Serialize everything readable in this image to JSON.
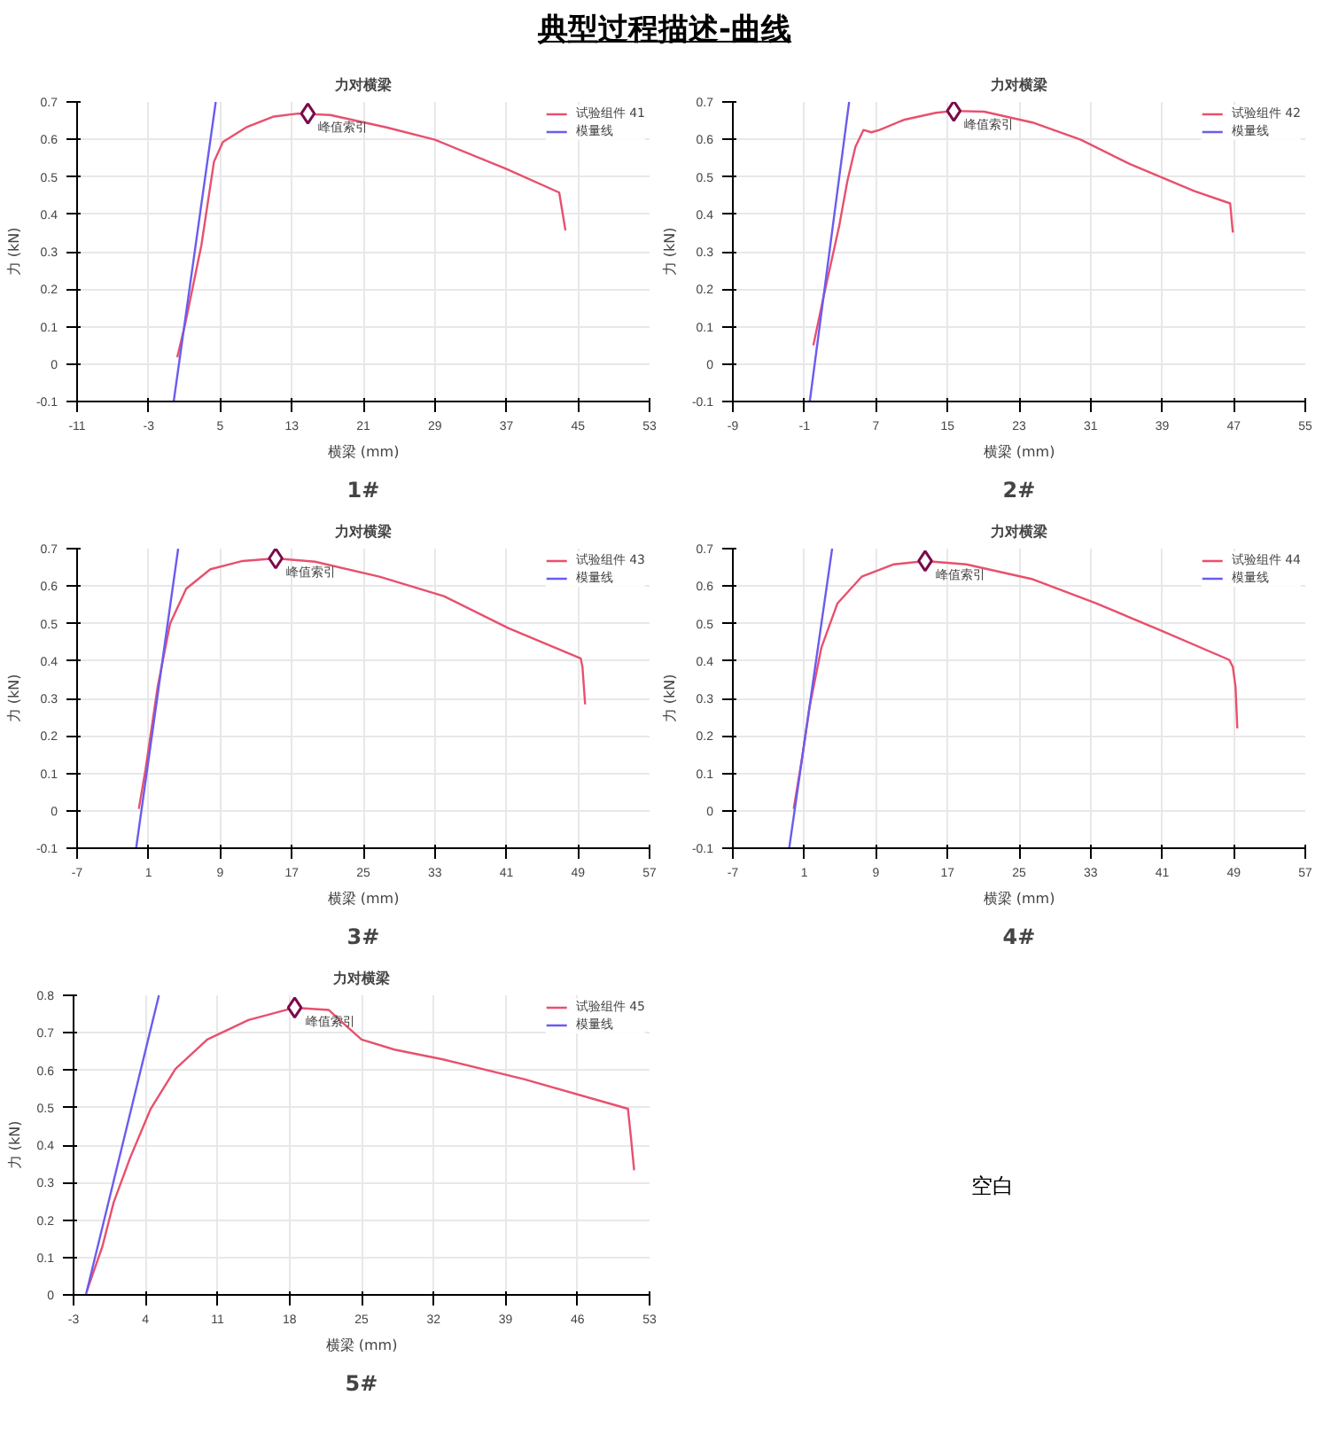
{
  "chart_data": [
    {
      "type": "line",
      "title": "力对横梁",
      "xlabel": "横梁 (mm)",
      "ylabel": "力 (kN)",
      "xlim": [
        -11,
        53
      ],
      "ylim": [
        -0.1,
        0.7
      ],
      "xticks": [
        -11,
        -3,
        5,
        13,
        21,
        29,
        37,
        45,
        53
      ],
      "yticks": [
        -0.1,
        0,
        0.1,
        0.2,
        0.3,
        0.4,
        0.5,
        0.6,
        0.7
      ],
      "grid": true,
      "legend": "top right",
      "marker": "none",
      "line_style": "solid",
      "series": [
        {
          "name": "试验组件 41",
          "color": "#e8506e",
          "x": [
            0.2,
            1.1,
            2.9,
            4.3,
            5.3,
            7.9,
            11.0,
            13.7,
            17.3,
            23.6,
            29.0,
            37.0,
            42.9,
            43.5,
            43.6
          ],
          "values": [
            0.018,
            0.109,
            0.318,
            0.54,
            0.593,
            0.632,
            0.661,
            0.669,
            0.665,
            0.632,
            0.599,
            0.521,
            0.458,
            0.371,
            0.357
          ]
        },
        {
          "name": "模量线",
          "color": "#6a5cf0",
          "x": [
            -0.2,
            4.5
          ],
          "values": [
            -0.1,
            0.7
          ]
        }
      ],
      "annotations": [
        {
          "text": "峰值索引",
          "x": 14.8,
          "y": 0.669
        },
        "1#"
      ]
    },
    {
      "type": "line",
      "title": "力对横梁",
      "xlabel": "横梁 (mm)",
      "ylabel": "力 (kN)",
      "xlim": [
        -9,
        55
      ],
      "ylim": [
        -0.1,
        0.7
      ],
      "xticks": [
        -9,
        -1,
        7,
        15,
        23,
        31,
        39,
        47,
        55
      ],
      "yticks": [
        -0.1,
        0,
        0.1,
        0.2,
        0.3,
        0.4,
        0.5,
        0.6,
        0.7
      ],
      "grid": true,
      "legend": "top right",
      "marker": "none",
      "line_style": "solid",
      "series": [
        {
          "name": "试验组件 42",
          "color": "#e8506e",
          "x": [
            0.0,
            1.1,
            2.9,
            3.8,
            4.7,
            5.6,
            6.5,
            7.4,
            10.1,
            13.7,
            15.7,
            19.1,
            24.5,
            29.9,
            35.4,
            42.6,
            46.6,
            46.9
          ],
          "values": [
            0.05,
            0.175,
            0.37,
            0.488,
            0.58,
            0.625,
            0.619,
            0.625,
            0.652,
            0.671,
            0.676,
            0.674,
            0.645,
            0.599,
            0.534,
            0.462,
            0.429,
            0.351
          ]
        },
        {
          "name": "模量线",
          "color": "#6a5cf0",
          "x": [
            -0.4,
            4.0
          ],
          "values": [
            -0.1,
            0.7
          ]
        }
      ],
      "annotations": [
        {
          "text": "峰值索引",
          "x": 15.7,
          "y": 0.676
        },
        "2#"
      ]
    },
    {
      "type": "line",
      "title": "力对横梁",
      "xlabel": "横梁 (mm)",
      "ylabel": "力 (kN)",
      "xlim": [
        -7,
        57
      ],
      "ylim": [
        -0.1,
        0.7
      ],
      "xticks": [
        -7,
        1,
        9,
        17,
        25,
        33,
        41,
        49,
        57
      ],
      "yticks": [
        -0.1,
        0,
        0.1,
        0.2,
        0.3,
        0.4,
        0.5,
        0.6,
        0.7
      ],
      "grid": true,
      "legend": "top right",
      "marker": "none",
      "line_style": "solid",
      "series": [
        {
          "name": "试验组件 43",
          "color": "#e8506e",
          "x": [
            -0.1,
            0.65,
            2.0,
            3.4,
            5.2,
            7.9,
            11.5,
            15.2,
            19.6,
            26.8,
            34.0,
            41.2,
            49.3,
            49.5,
            49.8
          ],
          "values": [
            0.005,
            0.11,
            0.33,
            0.5,
            0.593,
            0.645,
            0.667,
            0.674,
            0.665,
            0.625,
            0.573,
            0.488,
            0.407,
            0.384,
            0.284
          ]
        },
        {
          "name": "模量线",
          "color": "#6a5cf0",
          "x": [
            -0.4,
            4.3
          ],
          "values": [
            -0.1,
            0.7
          ]
        }
      ],
      "annotations": [
        {
          "text": "峰值索引",
          "x": 15.2,
          "y": 0.674
        },
        "3#"
      ]
    },
    {
      "type": "line",
      "title": "力对横梁",
      "xlabel": "横梁 (mm)",
      "ylabel": "力 (kN)",
      "xlim": [
        -7,
        57
      ],
      "ylim": [
        -0.1,
        0.7
      ],
      "xticks": [
        -7,
        1,
        9,
        17,
        25,
        33,
        41,
        49,
        57
      ],
      "yticks": [
        -0.1,
        0,
        0.1,
        0.2,
        0.3,
        0.4,
        0.5,
        0.6,
        0.7
      ],
      "grid": true,
      "legend": "top right",
      "marker": "none",
      "line_style": "solid",
      "series": [
        {
          "name": "试验组件 44",
          "color": "#e8506e",
          "x": [
            -0.2,
            0.7,
            1.6,
            2.9,
            4.7,
            7.4,
            11.0,
            14.5,
            19.1,
            26.4,
            33.6,
            40.8,
            48.5,
            48.9,
            49.2,
            49.4
          ],
          "values": [
            0.005,
            0.135,
            0.279,
            0.436,
            0.554,
            0.625,
            0.658,
            0.667,
            0.658,
            0.619,
            0.554,
            0.482,
            0.403,
            0.384,
            0.331,
            0.22
          ]
        },
        {
          "name": "模量线",
          "color": "#6a5cf0",
          "x": [
            -0.7,
            4.1
          ],
          "values": [
            -0.1,
            0.7
          ]
        }
      ],
      "annotations": [
        {
          "text": "峰值索引",
          "x": 14.5,
          "y": 0.667
        },
        "4#"
      ]
    },
    {
      "type": "line",
      "title": "力对横梁",
      "xlabel": "横梁 (mm)",
      "ylabel": "力 (kN)",
      "xlim": [
        -3,
        53
      ],
      "ylim": [
        0,
        0.8
      ],
      "xticks": [
        -3,
        4,
        11,
        18,
        25,
        32,
        39,
        46,
        53
      ],
      "yticks": [
        0,
        0.1,
        0.2,
        0.3,
        0.4,
        0.5,
        0.6,
        0.7,
        0.8
      ],
      "grid": true,
      "legend": "top right",
      "marker": "none",
      "line_style": "solid",
      "series": [
        {
          "name": "试验组件 45",
          "color": "#e8506e",
          "x": [
            -1.7,
            -0.2,
            0.9,
            2.5,
            4.5,
            6.9,
            10.0,
            14.0,
            18.5,
            21.8,
            23.4,
            25.0,
            28.2,
            32.9,
            40.8,
            50.9,
            51.2,
            51.5
          ],
          "values": [
            0.011,
            0.129,
            0.247,
            0.366,
            0.497,
            0.603,
            0.682,
            0.734,
            0.767,
            0.761,
            0.721,
            0.682,
            0.655,
            0.629,
            0.576,
            0.497,
            0.418,
            0.333
          ]
        },
        {
          "name": "模量线",
          "color": "#6a5cf0",
          "x": [
            -1.8,
            5.3
          ],
          "values": [
            0,
            0.8
          ]
        }
      ],
      "annotations": [
        {
          "text": "峰值索引",
          "x": 18.5,
          "y": 0.767
        },
        "5#"
      ]
    },
    {
      "type": "other",
      "title": "典型过程描述-曲线",
      "annotations": [
        "空白"
      ]
    }
  ]
}
